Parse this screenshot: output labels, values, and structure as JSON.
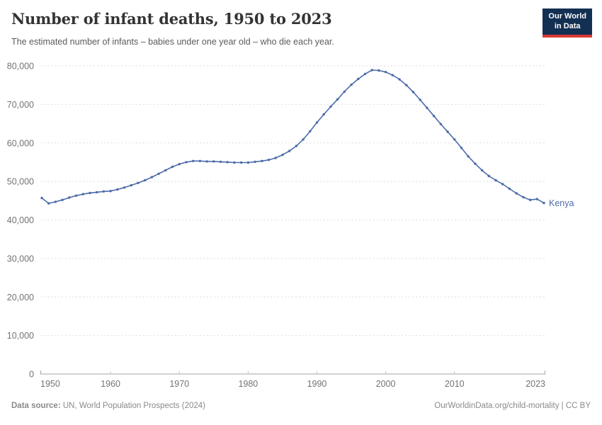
{
  "header": {
    "title": "Number of infant deaths, 1950 to 2023",
    "subtitle": "The estimated number of infants – babies under one year old – who die each year.",
    "logo": {
      "line1": "Our World",
      "line2": "in Data",
      "bg_color": "#132f52",
      "accent_color": "#dc3a32"
    }
  },
  "chart_data": {
    "type": "line",
    "title": "Number of infant deaths, 1950 to 2023",
    "xlabel": "",
    "ylabel": "",
    "xlim": [
      1950,
      2023
    ],
    "ylim": [
      0,
      80000
    ],
    "x_ticks": [
      1950,
      1960,
      1970,
      1980,
      1990,
      2000,
      2010,
      2023
    ],
    "y_ticks": [
      0,
      10000,
      20000,
      30000,
      40000,
      50000,
      60000,
      70000,
      80000
    ],
    "grid": "horizontal-dashed",
    "legend_position": "end-of-line-label",
    "axis_color": "#a5a5a5",
    "grid_color": "#dedede",
    "tick_label_color": "#737373",
    "series": [
      {
        "name": "Kenya",
        "color": "#4c6ba9",
        "x": [
          1950,
          1951,
          1952,
          1953,
          1954,
          1955,
          1956,
          1957,
          1958,
          1959,
          1960,
          1961,
          1962,
          1963,
          1964,
          1965,
          1966,
          1967,
          1968,
          1969,
          1970,
          1971,
          1972,
          1973,
          1974,
          1975,
          1976,
          1977,
          1978,
          1979,
          1980,
          1981,
          1982,
          1983,
          1984,
          1985,
          1986,
          1987,
          1988,
          1989,
          1990,
          1991,
          1992,
          1993,
          1994,
          1995,
          1996,
          1997,
          1998,
          1999,
          2000,
          2001,
          2002,
          2003,
          2004,
          2005,
          2006,
          2007,
          2008,
          2009,
          2010,
          2011,
          2012,
          2013,
          2014,
          2015,
          2016,
          2017,
          2018,
          2019,
          2020,
          2021,
          2022,
          2023
        ],
        "values": [
          45700,
          44300,
          44700,
          45200,
          45800,
          46300,
          46700,
          47000,
          47200,
          47400,
          47500,
          47900,
          48400,
          49000,
          49600,
          50300,
          51100,
          52000,
          52900,
          53800,
          54500,
          55000,
          55300,
          55300,
          55200,
          55200,
          55100,
          55000,
          54900,
          54900,
          54900,
          55100,
          55300,
          55600,
          56100,
          56900,
          57900,
          59200,
          60900,
          63000,
          65300,
          67400,
          69400,
          71300,
          73300,
          75100,
          76600,
          77900,
          78900,
          78800,
          78400,
          77600,
          76500,
          75000,
          73200,
          71200,
          69100,
          67000,
          64900,
          62900,
          60900,
          58700,
          56500,
          54600,
          52900,
          51400,
          50300,
          49300,
          48100,
          46900,
          45900,
          45200,
          45400,
          44400
        ]
      }
    ]
  },
  "footer": {
    "source_label": "Data source:",
    "source_text": " UN, World Population Prospects (2024)",
    "credit": "OurWorldinData.org/child-mortality | CC BY"
  }
}
